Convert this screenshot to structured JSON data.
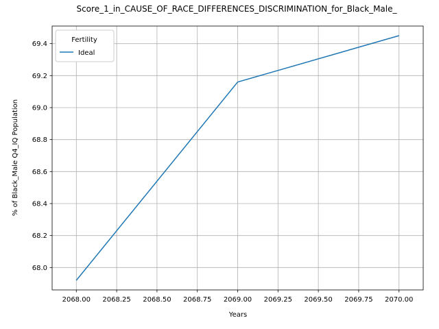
{
  "chart_data": {
    "type": "line",
    "title": "Score_1_in_CAUSE_OF_RACE_DIFFERENCES_DISCRIMINATION_for_Black_Male_",
    "xlabel": "Years",
    "ylabel": "% of Black_Male Q4_IQ Population",
    "xlim": [
      2067.85,
      2070.15
    ],
    "ylim": [
      67.86,
      69.51
    ],
    "xticks": [
      "2068.00",
      "2068.25",
      "2068.50",
      "2068.75",
      "2069.00",
      "2069.25",
      "2069.50",
      "2069.75",
      "2070.00"
    ],
    "xtick_values": [
      2068.0,
      2068.25,
      2068.5,
      2068.75,
      2069.0,
      2069.25,
      2069.5,
      2069.75,
      2070.0
    ],
    "yticks": [
      "68.0",
      "68.2",
      "68.4",
      "68.6",
      "68.8",
      "69.0",
      "69.2",
      "69.4"
    ],
    "ytick_values": [
      68.0,
      68.2,
      68.4,
      68.6,
      68.8,
      69.0,
      69.2,
      69.4
    ],
    "grid": true,
    "legend": {
      "title": "Fertility",
      "placement": "top-left"
    },
    "series": [
      {
        "name": "Ideal",
        "color": "#1f77b4",
        "x": [
          2068,
          2069,
          2070
        ],
        "y": [
          67.92,
          69.16,
          69.45
        ]
      }
    ]
  }
}
